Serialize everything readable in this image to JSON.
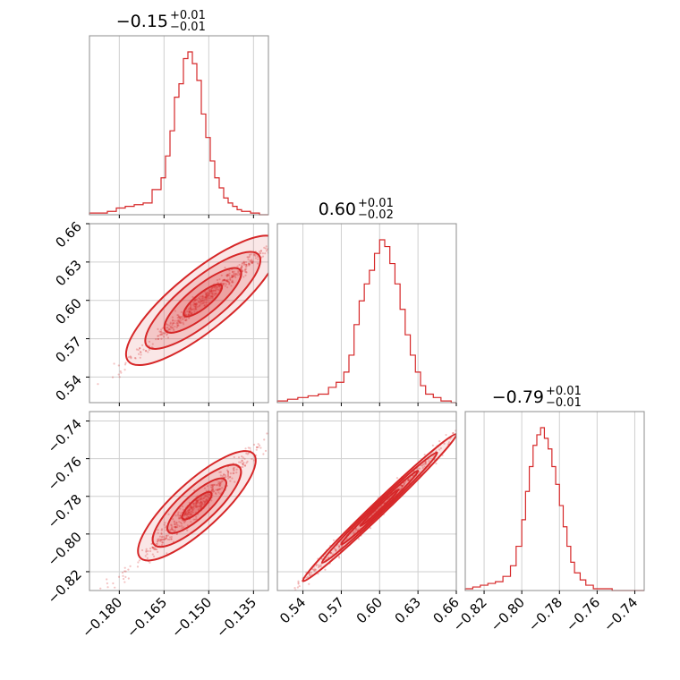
{
  "chart_data": {
    "type": "corner",
    "color": "#d62728",
    "grid": true,
    "parameters": [
      {
        "range": [
          -0.19,
          -0.13
        ],
        "ticks": [
          -0.18,
          -0.165,
          -0.15,
          -0.135
        ],
        "tick_labels": [
          "−0.180",
          "−0.165",
          "−0.150",
          "−0.135"
        ],
        "title_value": "−0.15",
        "title_plus": "+0.01",
        "title_minus": "−0.01",
        "hist_edges": [
          -0.19,
          -0.187,
          -0.184,
          -0.181,
          -0.178,
          -0.175,
          -0.172,
          -0.169,
          -0.166,
          -0.1645,
          -0.163,
          -0.1615,
          -0.16,
          -0.1585,
          -0.157,
          -0.1555,
          -0.154,
          -0.1525,
          -0.151,
          -0.1495,
          -0.148,
          -0.1465,
          -0.145,
          -0.1435,
          -0.142,
          -0.1405,
          -0.139,
          -0.136,
          -0.133,
          -0.13
        ],
        "hist_counts": [
          1,
          1,
          2,
          4,
          5,
          6,
          7,
          15,
          22,
          35,
          50,
          70,
          78,
          93,
          97,
          90,
          80,
          60,
          46,
          32,
          22,
          16,
          10,
          7,
          5,
          3,
          2,
          1,
          0
        ]
      },
      {
        "range": [
          0.52,
          0.66
        ],
        "ticks": [
          0.54,
          0.57,
          0.6,
          0.63,
          0.66
        ],
        "tick_labels": [
          "0.54",
          "0.57",
          "0.60",
          "0.63",
          "0.66"
        ],
        "y_ticks": [
          0.54,
          0.57,
          0.6,
          0.63,
          0.66
        ],
        "y_tick_labels": [
          "0.54",
          "0.57",
          "0.60",
          "0.63",
          "0.66"
        ],
        "title_value": "0.60",
        "title_plus": "+0.01",
        "title_minus": "−0.02",
        "hist_edges": [
          0.52,
          0.528,
          0.536,
          0.544,
          0.552,
          0.56,
          0.566,
          0.572,
          0.576,
          0.58,
          0.584,
          0.588,
          0.592,
          0.596,
          0.6,
          0.604,
          0.608,
          0.612,
          0.616,
          0.62,
          0.624,
          0.628,
          0.632,
          0.636,
          0.642,
          0.648,
          0.656,
          0.66
        ],
        "hist_counts": [
          1,
          2,
          3,
          4,
          5,
          9,
          12,
          18,
          28,
          46,
          60,
          70,
          78,
          88,
          96,
          92,
          82,
          70,
          55,
          40,
          28,
          18,
          10,
          5,
          3,
          1,
          0
        ]
      },
      {
        "range": [
          -0.83,
          -0.735
        ],
        "ticks": [
          -0.82,
          -0.8,
          -0.78,
          -0.76,
          -0.74
        ],
        "tick_labels": [
          "−0.82",
          "−0.80",
          "−0.78",
          "−0.76",
          "−0.74"
        ],
        "y_ticks": [
          -0.82,
          -0.8,
          -0.78,
          -0.76,
          -0.74
        ],
        "y_tick_labels": [
          "−0.82",
          "−0.80",
          "−0.78",
          "−0.76",
          "−0.74"
        ],
        "title_value": "−0.79",
        "title_plus": "+0.01",
        "title_minus": "−0.01",
        "hist_edges": [
          -0.83,
          -0.826,
          -0.822,
          -0.818,
          -0.814,
          -0.81,
          -0.806,
          -0.803,
          -0.8,
          -0.798,
          -0.796,
          -0.794,
          -0.792,
          -0.79,
          -0.788,
          -0.786,
          -0.784,
          -0.782,
          -0.78,
          -0.778,
          -0.776,
          -0.774,
          -0.772,
          -0.769,
          -0.766,
          -0.762,
          -0.758,
          -0.752,
          -0.745,
          -0.735
        ],
        "hist_counts": [
          1,
          2,
          3,
          4,
          5,
          8,
          14,
          25,
          40,
          56,
          70,
          82,
          88,
          92,
          86,
          80,
          70,
          60,
          48,
          36,
          25,
          16,
          10,
          6,
          3,
          1,
          1,
          0,
          0
        ]
      }
    ],
    "pairs": [
      {
        "x_param": 0,
        "y_param": 1,
        "mean": [
          -0.152,
          0.6
        ],
        "sigma_major": 0.0125,
        "sigma_minor": 0.0022,
        "angle_deg": 38,
        "slope": 1.9
      },
      {
        "x_param": 0,
        "y_param": 2,
        "mean": [
          -0.154,
          -0.785
        ],
        "sigma_major": 0.0095,
        "sigma_minor": 0.0018,
        "angle_deg": 34,
        "slope": 1.45
      },
      {
        "x_param": 1,
        "y_param": 2,
        "mean": [
          0.6,
          -0.786
        ],
        "sigma_major": 0.03,
        "sigma_minor": 0.0012,
        "angle_deg": 30,
        "slope": 0.65
      }
    ],
    "contour_levels_sigma": [
      0.5,
      1.0,
      1.5,
      2.0
    ]
  }
}
